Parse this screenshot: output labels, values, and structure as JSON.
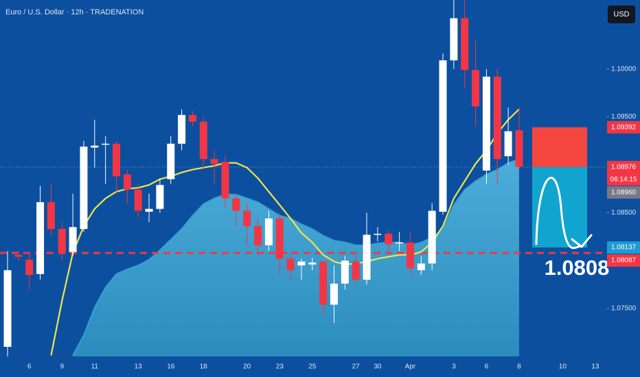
{
  "chart_data": {
    "type": "candlestick",
    "title": "Euro / U.S. Dollar · 12h · TRADENATION",
    "currency": "USD",
    "categories": [
      null,
      null,
      "6",
      null,
      null,
      "9",
      null,
      null,
      "11",
      null,
      null,
      null,
      "13",
      null,
      null,
      "16",
      null,
      null,
      "18",
      null,
      null,
      null,
      "20",
      null,
      null,
      "23",
      null,
      null,
      "25",
      null,
      null,
      null,
      "27",
      null,
      "30",
      null,
      null,
      "Apr",
      null,
      null,
      null,
      "3",
      null,
      null,
      "6",
      null,
      null,
      "8",
      null,
      null,
      null,
      "10",
      null,
      null,
      "13",
      null
    ],
    "open": [
      1.071,
      1.0806,
      1.0801,
      1.0786,
      1.0861,
      1.0833,
      1.0809,
      1.0833,
      1.0918,
      1.0921,
      1.0922,
      1.089,
      1.0874,
      1.0851,
      1.0854,
      1.0885,
      1.0922,
      1.0952,
      1.0945,
      1.0906,
      1.0903,
      1.0865,
      1.0852,
      1.0836,
      1.0816,
      1.0844,
      1.0802,
      1.0795,
      1.0796,
      1.0799,
      1.0754,
      1.0776,
      1.0799,
      1.078,
      1.0827,
      1.0828,
      1.0818,
      1.0819,
      1.079,
      1.0797,
      1.0851,
      1.1009,
      1.1053,
      1.0999,
      1.0894,
      1.0992,
      1.0909,
      1.0936,
      null,
      null,
      null,
      null,
      null,
      null,
      null,
      null
    ],
    "high": [
      1.081,
      1.081,
      1.0808,
      1.0878,
      1.088,
      1.084,
      1.087,
      1.0925,
      1.0947,
      1.093,
      1.0925,
      1.0895,
      1.088,
      1.087,
      1.0885,
      1.093,
      1.0958,
      1.0956,
      1.095,
      1.0915,
      1.091,
      1.087,
      1.086,
      1.0845,
      1.0852,
      1.085,
      1.0808,
      1.0802,
      1.0803,
      1.08,
      1.0795,
      1.0805,
      1.0805,
      1.085,
      1.0835,
      1.0832,
      1.083,
      1.083,
      1.0805,
      1.086,
      1.1016,
      1.1072,
      1.1072,
      1.103,
      1.1,
      1.1,
      1.096,
      1.096,
      null,
      null,
      null,
      null,
      null,
      null,
      null,
      null
    ],
    "low": [
      1.07,
      1.08,
      1.077,
      1.078,
      1.0826,
      1.08,
      1.0805,
      1.083,
      1.0897,
      1.088,
      1.087,
      1.086,
      1.0845,
      1.084,
      1.085,
      1.088,
      1.0915,
      1.094,
      1.0895,
      1.088,
      1.0855,
      1.0835,
      1.0815,
      1.0805,
      1.081,
      1.0785,
      1.078,
      1.078,
      1.079,
      1.0743,
      1.0735,
      1.077,
      1.0775,
      1.0775,
      1.082,
      1.081,
      1.081,
      1.0785,
      1.0785,
      1.079,
      1.0848,
      1.1,
      1.098,
      1.094,
      1.088,
      1.088,
      1.09,
      1.0895,
      null,
      null,
      null,
      null,
      null,
      null,
      null,
      null
    ],
    "close": [
      1.079,
      1.0804,
      1.0785,
      1.0861,
      1.0833,
      1.0809,
      1.0835,
      1.0919,
      1.092,
      1.0922,
      1.0888,
      1.0874,
      1.0852,
      1.0854,
      1.0879,
      1.0922,
      1.0952,
      1.0945,
      1.0906,
      1.0901,
      1.0865,
      1.0852,
      1.0836,
      1.0816,
      1.0844,
      1.0802,
      1.079,
      1.0799,
      1.0798,
      1.0754,
      1.0776,
      1.08,
      1.078,
      1.0827,
      1.0828,
      1.0817,
      1.0819,
      1.0792,
      1.0797,
      1.0852,
      1.1009,
      1.1053,
      1.0999,
      1.0961,
      1.0992,
      1.0906,
      1.0935,
      1.0898,
      null,
      null,
      null,
      null,
      null,
      null,
      null,
      null
    ],
    "up_color": "#ffffff",
    "down_color": "#f23645",
    "ylim": [
      1.07,
      1.1072
    ],
    "yticks": [
      {
        "value": 1.1,
        "label": "1.10000"
      },
      {
        "value": 1.095,
        "label": "1.09500"
      },
      {
        "value": 1.085,
        "label": "1.08500"
      },
      {
        "value": 1.075,
        "label": "1.07500"
      }
    ],
    "ma": {
      "color": "#f2e646",
      "values": [
        null,
        null,
        null,
        null,
        1.0701,
        1.0758,
        1.0808,
        1.0836,
        1.0854,
        1.0865,
        1.0872,
        1.0875,
        1.0876,
        1.0879,
        1.0885,
        1.0888,
        1.0892,
        1.0895,
        1.0897,
        1.0899,
        1.0902,
        1.0902,
        1.0897,
        1.0886,
        1.0872,
        1.0858,
        1.0844,
        1.0829,
        1.0819,
        1.0806,
        1.0799,
        1.0796,
        1.0797,
        1.0799,
        1.0802,
        1.0804,
        1.0806,
        1.0806,
        1.0809,
        1.0819,
        1.0836,
        1.0865,
        1.0883,
        1.0901,
        1.0915,
        1.0933,
        1.0947,
        1.0958,
        null,
        null,
        null,
        null,
        null,
        null,
        null,
        null
      ]
    },
    "area": {
      "color": "#3aa3cf",
      "values": [
        null,
        null,
        null,
        null,
        null,
        null,
        1.0701,
        1.0722,
        1.0751,
        1.0772,
        1.0786,
        1.0791,
        1.0795,
        1.0801,
        1.0811,
        1.0822,
        1.0833,
        1.0847,
        1.0859,
        1.0865,
        1.0869,
        1.0869,
        1.0865,
        1.0861,
        1.0854,
        1.0847,
        1.0844,
        1.0838,
        1.0833,
        1.0826,
        1.0821,
        1.0819,
        1.0816,
        1.0816,
        1.0818,
        1.0819,
        1.0819,
        1.0816,
        1.0819,
        1.0824,
        1.0833,
        1.0858,
        1.0874,
        1.0883,
        1.089,
        1.0895,
        1.0902,
        1.0906,
        null,
        null,
        null,
        null,
        null,
        null,
        null,
        null
      ]
    },
    "price_labels": [
      {
        "value": 1.09392,
        "label": "1.09392",
        "color": "#f23645"
      },
      {
        "value": 1.08976,
        "label": "1.08976",
        "color": "#f23645"
      },
      {
        "value": 1.0896,
        "label": "1.08960",
        "color": "#787b86"
      },
      {
        "value": 1.08137,
        "label": "1.08137",
        "color": "#1f9bd1"
      },
      {
        "value": 1.08087,
        "label": "1.08087",
        "color": "#f23645"
      }
    ],
    "countdown": "06:14:15",
    "target": {
      "value": 1.0808,
      "label": "1.0808",
      "color": "#f23645"
    }
  }
}
